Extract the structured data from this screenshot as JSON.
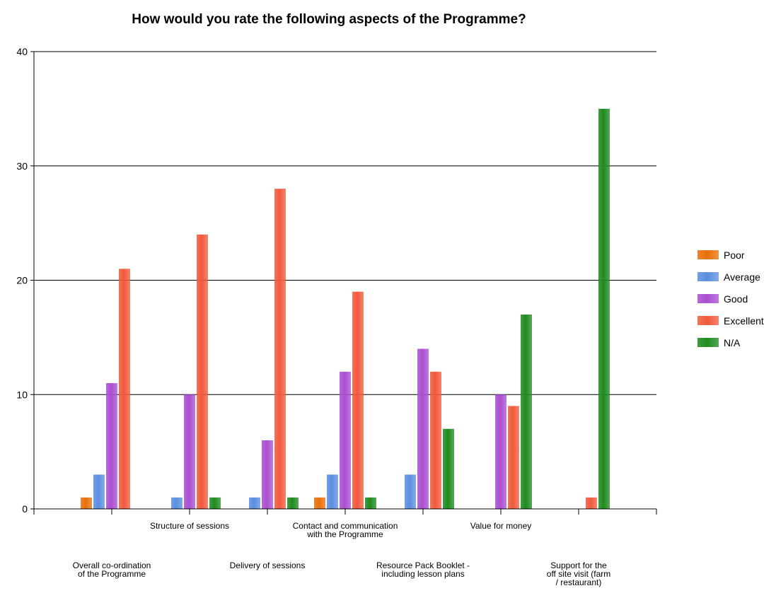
{
  "chart_data": {
    "type": "bar",
    "title": "How would you rate the following aspects of the Programme?",
    "xlabel": "",
    "ylabel": "",
    "ylim": [
      0,
      40
    ],
    "yticks": [
      0,
      10,
      20,
      30,
      40
    ],
    "grid": true,
    "legend_position": "right",
    "categories": [
      "Overall co-ordination of the Programme",
      "Structure of sessions",
      "Delivery of sessions",
      "Contact and communication with the Programme",
      "Resource Pack Booklet - including lesson plans",
      "Value for money",
      "Support for the off site visit (farm / restaurant)"
    ],
    "category_label_lines": [
      [
        "Overall co-ordination",
        "of the Programme"
      ],
      [
        "Structure of sessions"
      ],
      [
        "Delivery of sessions"
      ],
      [
        "Contact and communication",
        "with the Programme"
      ],
      [
        "Resource Pack Booklet -",
        "including lesson plans"
      ],
      [
        "Value for money"
      ],
      [
        "Support for the",
        "off site visit (farm",
        "/ restaurant)"
      ]
    ],
    "series": [
      {
        "name": "Poor",
        "color": "#e8700a",
        "values": [
          1,
          0,
          0,
          1,
          0,
          0,
          0
        ]
      },
      {
        "name": "Average",
        "color": "#5b8ee0",
        "values": [
          3,
          1,
          1,
          3,
          3,
          0,
          0
        ]
      },
      {
        "name": "Good",
        "color": "#a94fd0",
        "values": [
          11,
          10,
          6,
          12,
          14,
          10,
          0
        ]
      },
      {
        "name": "Excellent",
        "color": "#f05a3c",
        "values": [
          21,
          24,
          28,
          19,
          12,
          9,
          1
        ]
      },
      {
        "name": "N/A",
        "color": "#1f8a1f",
        "values": [
          0,
          1,
          1,
          1,
          7,
          17,
          35
        ]
      }
    ]
  }
}
